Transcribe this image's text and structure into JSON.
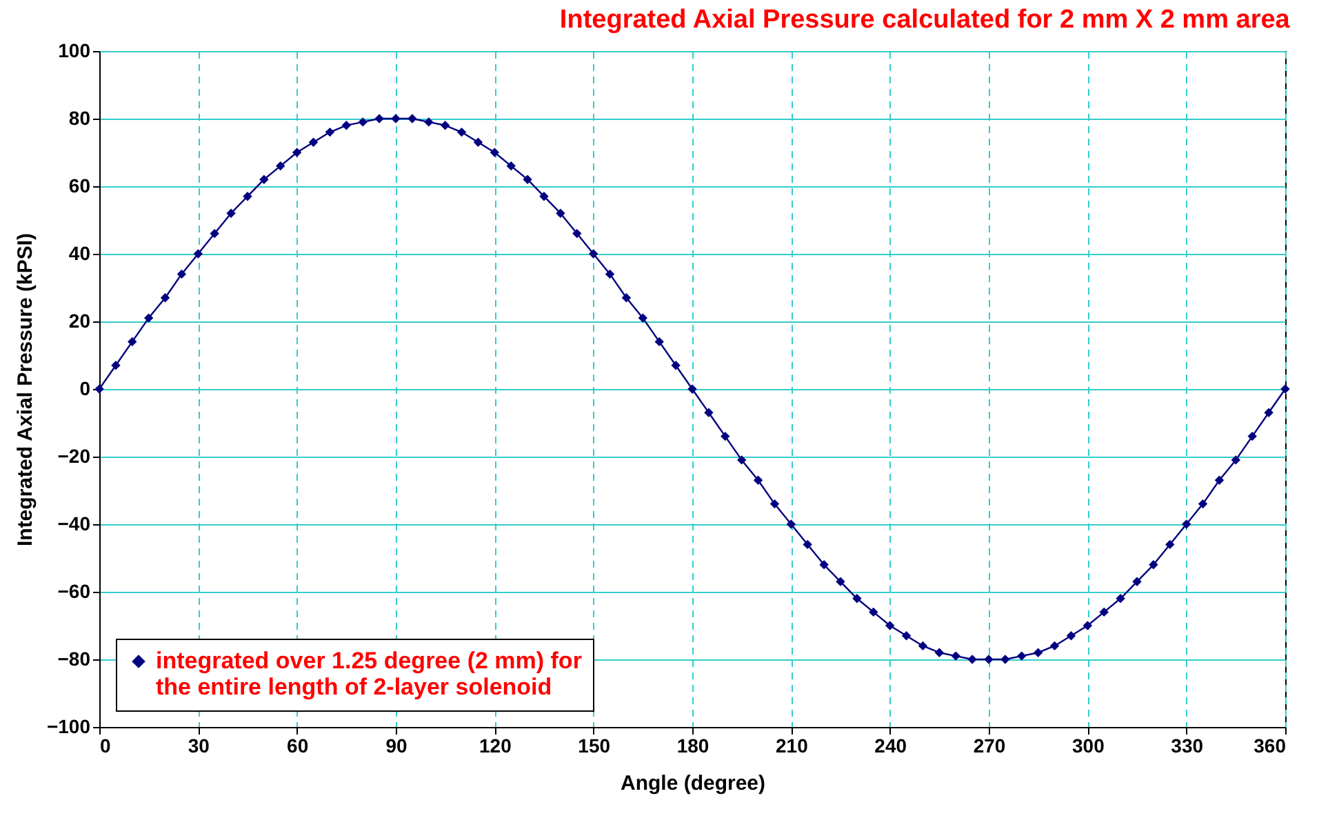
{
  "chart_data": {
    "type": "line",
    "title": "Integrated Axial Pressure calculated for 2 mm X 2 mm area",
    "xlabel": "Angle (degree)",
    "ylabel": "Integrated Axial Pressure (kPSI)",
    "x": [
      0,
      5,
      10,
      15,
      20,
      25,
      30,
      35,
      40,
      45,
      50,
      55,
      60,
      65,
      70,
      75,
      80,
      85,
      90,
      95,
      100,
      105,
      110,
      115,
      120,
      125,
      130,
      135,
      140,
      145,
      150,
      155,
      160,
      165,
      170,
      175,
      180,
      185,
      190,
      195,
      200,
      205,
      210,
      215,
      220,
      225,
      230,
      235,
      240,
      245,
      250,
      255,
      260,
      265,
      270,
      275,
      280,
      285,
      290,
      295,
      300,
      305,
      310,
      315,
      320,
      325,
      330,
      335,
      340,
      345,
      350,
      355,
      360
    ],
    "series": [
      {
        "name": "integrated over 1.25 degree (2 mm) for the entire length of 2-layer solenoid",
        "color": "#000080",
        "values": [
          0,
          7,
          14,
          21,
          27,
          34,
          40,
          46,
          52,
          57,
          62,
          66,
          70,
          73,
          76,
          78,
          79,
          80,
          80,
          80,
          79,
          78,
          76,
          73,
          70,
          66,
          62,
          57,
          52,
          46,
          40,
          34,
          27,
          21,
          14,
          7,
          0,
          -7,
          -14,
          -21,
          -27,
          -34,
          -40,
          -46,
          -52,
          -57,
          -62,
          -66,
          -70,
          -73,
          -76,
          -78,
          -79,
          -80,
          -80,
          -80,
          -79,
          -78,
          -76,
          -73,
          -70,
          -66,
          -62,
          -57,
          -52,
          -46,
          -40,
          -34,
          -27,
          -21,
          -14,
          -7,
          0
        ]
      }
    ],
    "xlim": [
      0,
      360
    ],
    "xticks": [
      0,
      30,
      60,
      90,
      120,
      150,
      180,
      210,
      240,
      270,
      300,
      330,
      360
    ],
    "ylim": [
      -100,
      100
    ],
    "yticks": [
      -100,
      -80,
      -60,
      -40,
      -20,
      0,
      20,
      40,
      60,
      80,
      100
    ],
    "grid": true,
    "legend": "bottom left",
    "marker": "diamond",
    "line_style": "solid"
  }
}
